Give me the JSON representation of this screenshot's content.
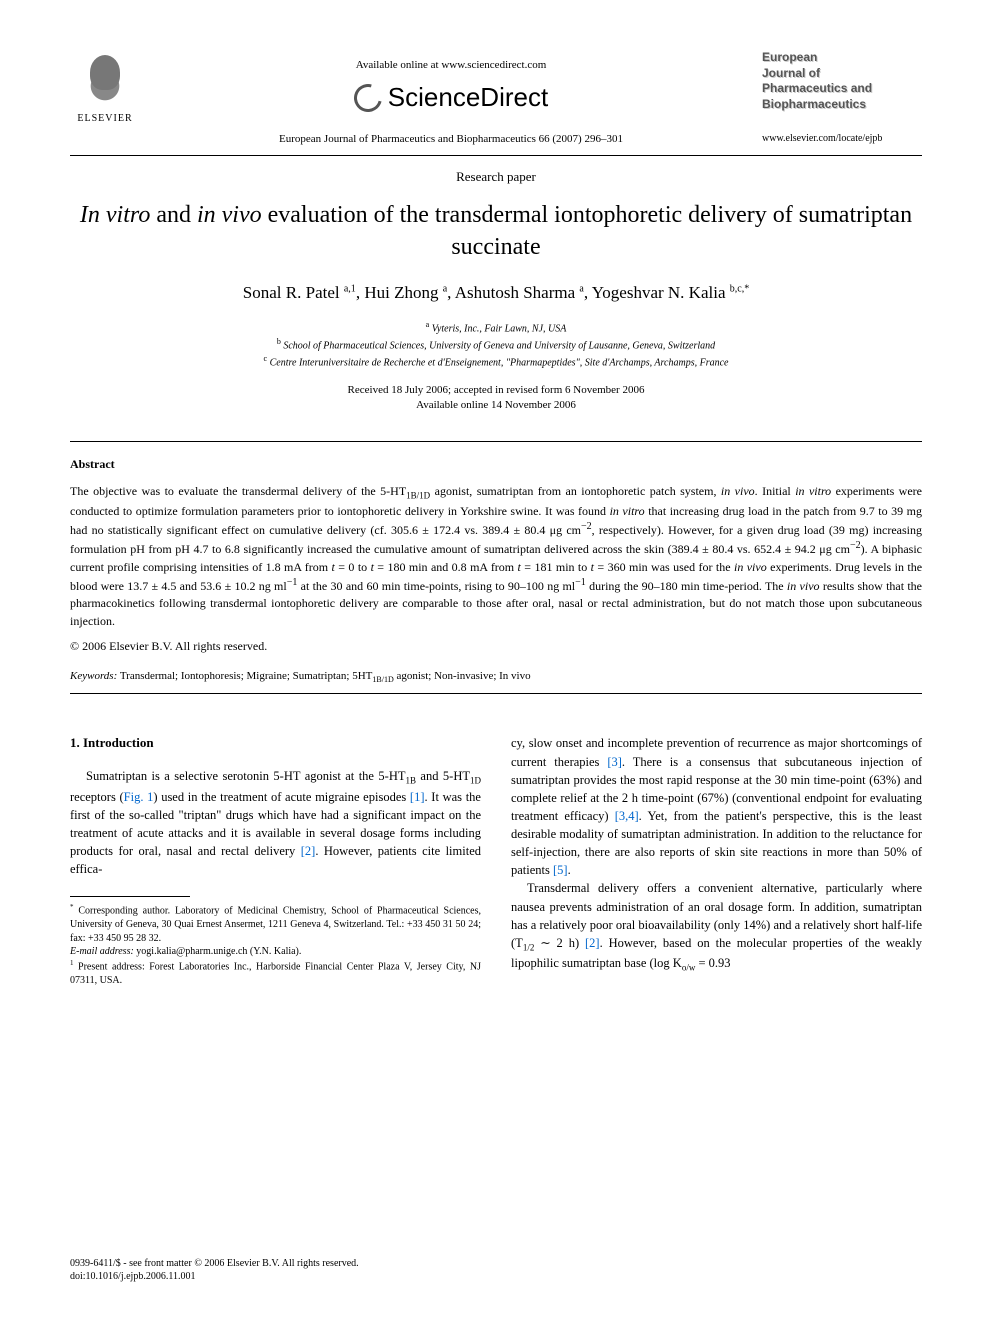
{
  "header": {
    "elsevier": "ELSEVIER",
    "available_online": "Available online at www.sciencedirect.com",
    "sciencedirect": "ScienceDirect",
    "journal_ref": "European Journal of Pharmaceutics and Biopharmaceutics 66 (2007) 296–301",
    "journal_title_lines": [
      "European",
      "Journal of",
      "Pharmaceutics and",
      "Biopharmaceutics"
    ],
    "journal_url": "www.elsevier.com/locate/ejpb"
  },
  "paper": {
    "type": "Research paper",
    "title_pre_italic1": "In vitro",
    "title_mid": " and ",
    "title_italic2": "in vivo",
    "title_rest": " evaluation of the transdermal iontophoretic delivery of sumatriptan succinate",
    "authors_html": "Sonal R. Patel <sup>a,1</sup>, Hui Zhong <sup>a</sup>, Ashutosh Sharma <sup>a</sup>, Yogeshvar N. Kalia <sup>b,c,*</sup>",
    "affiliations": [
      "<sup>a</sup> Vyteris, Inc., Fair Lawn, NJ, USA",
      "<sup>b</sup> School of Pharmaceutical Sciences, University of Geneva and University of Lausanne, Geneva, Switzerland",
      "<sup>c</sup> Centre Interuniversitaire de Recherche et d'Enseignement, \"Pharmapeptides\", Site d'Archamps, Archamps, France"
    ],
    "received": "Received 18 July 2006; accepted in revised form 6 November 2006",
    "available": "Available online 14 November 2006"
  },
  "abstract": {
    "heading": "Abstract",
    "body": "The objective was to evaluate the transdermal delivery of the 5-HT<sub>1B/1D</sub> agonist, sumatriptan from an iontophoretic patch system, <span class=\"ital\">in vivo</span>. Initial <span class=\"ital\">in vitro</span> experiments were conducted to optimize formulation parameters prior to iontophoretic delivery in Yorkshire swine. It was found <span class=\"ital\">in vitro</span> that increasing drug load in the patch from 9.7 to 39 mg had no statistically significant effect on cumulative delivery (cf. 305.6 ± 172.4 vs. 389.4 ± 80.4 μg cm<sup>−2</sup>, respectively). However, for a given drug load (39 mg) increasing formulation pH from pH 4.7 to 6.8 significantly increased the cumulative amount of sumatriptan delivered across the skin (389.4 ± 80.4 vs. 652.4 ± 94.2 μg cm<sup>−2</sup>). A biphasic current profile comprising intensities of 1.8 mA from <span class=\"ital\">t</span> = 0 to <span class=\"ital\">t</span> = 180 min and 0.8 mA from <span class=\"ital\">t</span> = 181 min to <span class=\"ital\">t</span> = 360 min was used for the <span class=\"ital\">in vivo</span> experiments. Drug levels in the blood were 13.7 ± 4.5 and 53.6 ± 10.2 ng ml<sup>−1</sup> at the 30 and 60 min time-points, rising to 90–100 ng ml<sup>−1</sup> during the 90–180 min time-period. The <span class=\"ital\">in vivo</span> results show that the pharmacokinetics following transdermal iontophoretic delivery are comparable to those after oral, nasal or rectal administration, but do not match those upon subcutaneous injection.",
    "copyright": "© 2006 Elsevier B.V. All rights reserved.",
    "keywords_label": "Keywords:",
    "keywords": " Transdermal; Iontophoresis; Migraine; Sumatriptan; 5HT<sub>1B/1D</sub> agonist; Non-invasive; <span class=\"ital\">In vivo</span>"
  },
  "intro": {
    "heading": "1. Introduction",
    "col1": "Sumatriptan is a selective serotonin 5-HT agonist at the 5-HT<sub>1B</sub> and 5-HT<sub>1D</sub> receptors (<span class=\"link\">Fig. 1</span>) used in the treatment of acute migraine episodes <span class=\"link\">[1]</span>. It was the first of the so-called \"triptan\" drugs which have had a significant impact on the treatment of acute attacks and it is available in several dosage forms including products for oral, nasal and rectal delivery <span class=\"link\">[2]</span>. However, patients cite limited effica-",
    "col2_p1": "cy, slow onset and incomplete prevention of recurrence as major shortcomings of current therapies <span class=\"link\">[3]</span>. There is a consensus that subcutaneous injection of sumatriptan provides the most rapid response at the 30 min time-point (63%) and complete relief at the 2 h time-point (67%) (conventional endpoint for evaluating treatment efficacy) <span class=\"link\">[3,4]</span>. Yet, from the patient's perspective, this is the least desirable modality of sumatriptan administration. In addition to the reluctance for self-injection, there are also reports of skin site reactions in more than 50% of patients <span class=\"link\">[5]</span>.",
    "col2_p2": "Transdermal delivery offers a convenient alternative, particularly where nausea prevents administration of an oral dosage form. In addition, sumatriptan has a relatively poor oral bioavailability (only 14%) and a relatively short half-life (<span class=\"ital\">T</span><sub>1/2</sub> ∼ 2 h) <span class=\"link\">[2]</span>. However, based on the molecular properties of the weakly lipophilic sumatriptan base (log <span class=\"ital\">K</span><sub>o/w</sub> = 0.93"
  },
  "footnotes": {
    "corresponding": "<sup>*</sup> Corresponding author. Laboratory of Medicinal Chemistry, School of Pharmaceutical Sciences, University of Geneva, 30 Quai Ernest Ansermet, 1211 Geneva 4, Switzerland. Tel.: +33 450 31 50 24; fax: +33 450 95 28 32.",
    "email_label": "E-mail address:",
    "email": " yogi.kalia@pharm.unige.ch (Y.N. Kalia).",
    "present": "<sup>1</sup> Present address: Forest Laboratories Inc., Harborside Financial Center Plaza V, Jersey City, NJ 07311, USA."
  },
  "footer": {
    "line1": "0939-6411/$ - see front matter © 2006 Elsevier B.V. All rights reserved.",
    "line2": "doi:10.1016/j.ejpb.2006.11.001"
  }
}
